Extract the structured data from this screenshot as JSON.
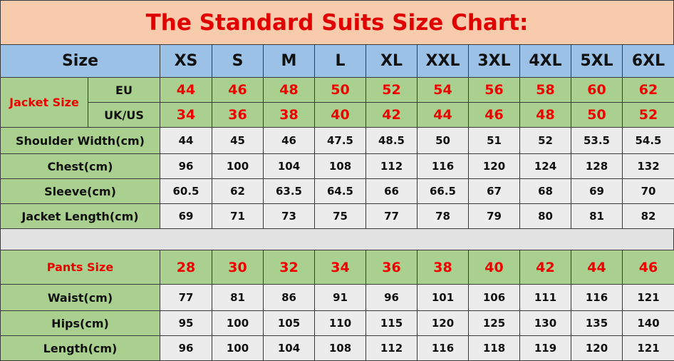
{
  "title": "The Standard Suits Size Chart:",
  "header": {
    "label": "Size",
    "sizes": [
      "XS",
      "S",
      "M",
      "L",
      "XL",
      "XXL",
      "3XL",
      "4XL",
      "5XL",
      "6XL"
    ]
  },
  "jacket": {
    "label": "Jacket Size",
    "rows": [
      {
        "label": "EU",
        "values": [
          "44",
          "46",
          "48",
          "50",
          "52",
          "54",
          "56",
          "58",
          "60",
          "62"
        ]
      },
      {
        "label": "UK/US",
        "values": [
          "34",
          "36",
          "38",
          "40",
          "42",
          "44",
          "46",
          "48",
          "50",
          "52"
        ]
      }
    ]
  },
  "measurements": [
    {
      "label": "Shoulder Width(cm)",
      "values": [
        "44",
        "45",
        "46",
        "47.5",
        "48.5",
        "50",
        "51",
        "52",
        "53.5",
        "54.5"
      ]
    },
    {
      "label": "Chest(cm)",
      "values": [
        "96",
        "100",
        "104",
        "108",
        "112",
        "116",
        "120",
        "124",
        "128",
        "132"
      ]
    },
    {
      "label": "Sleeve(cm)",
      "values": [
        "60.5",
        "62",
        "63.5",
        "64.5",
        "66",
        "66.5",
        "67",
        "68",
        "69",
        "70"
      ]
    },
    {
      "label": "Jacket Length(cm)",
      "values": [
        "69",
        "71",
        "73",
        "75",
        "77",
        "78",
        "79",
        "80",
        "81",
        "82"
      ]
    }
  ],
  "pants": {
    "label": "Pants Size",
    "values": [
      "28",
      "30",
      "32",
      "34",
      "36",
      "38",
      "40",
      "42",
      "44",
      "46"
    ]
  },
  "pants_measurements": [
    {
      "label": "Waist(cm)",
      "values": [
        "77",
        "81",
        "86",
        "91",
        "96",
        "101",
        "106",
        "111",
        "116",
        "121"
      ]
    },
    {
      "label": "Hips(cm)",
      "values": [
        "95",
        "100",
        "105",
        "110",
        "115",
        "120",
        "125",
        "130",
        "135",
        "140"
      ]
    },
    {
      "label": "Length(cm)",
      "values": [
        "96",
        "100",
        "104",
        "108",
        "112",
        "116",
        "118",
        "119",
        "120",
        "121"
      ]
    }
  ]
}
